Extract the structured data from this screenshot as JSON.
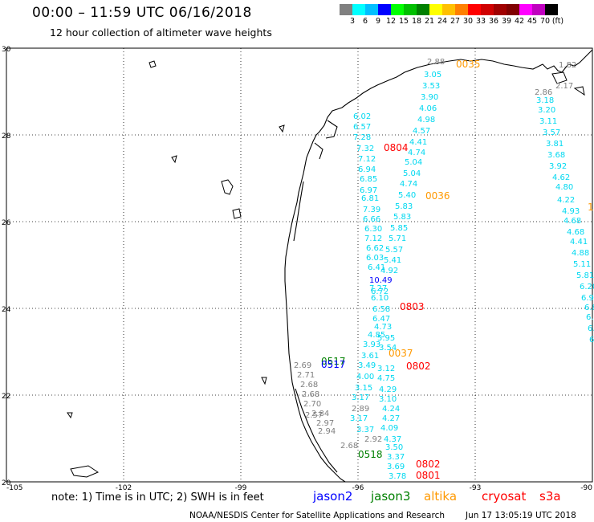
{
  "header": {
    "title": "00:00 – 11:59 UTC 06/16/2018",
    "subtitle": "12 hour collection of altimeter wave heights"
  },
  "colorbar": {
    "colors": [
      "#808080",
      "#00ffff",
      "#00bfff",
      "#0000ff",
      "#00ff00",
      "#00c000",
      "#008000",
      "#ffff00",
      "#ffc000",
      "#ff8000",
      "#ff0000",
      "#d00000",
      "#a00000",
      "#800000",
      "#ff00ff",
      "#c000c0",
      "#000000"
    ],
    "labels": [
      "3",
      "6",
      "9",
      "12",
      "15",
      "18",
      "21",
      "24",
      "27",
      "30",
      "33",
      "36",
      "39",
      "42",
      "45",
      "70",
      "(ft)"
    ]
  },
  "axes": {
    "lat_labels": [
      "30",
      "28",
      "26",
      "24",
      "22",
      "20"
    ],
    "lon_labels": [
      "-105",
      "-102",
      "-99",
      "-96",
      "-93",
      "-90"
    ]
  },
  "satellite_colors": {
    "jason2": "#0000ff",
    "jason3": "#008000",
    "altika": "#ff9900",
    "cryosat": "#ff0000",
    "s3a": "#808080",
    "generic": "#00d8f0",
    "darkred": "#d00000"
  },
  "wave_labels": [
    {
      "t": "2.88",
      "c": "s3a"
    },
    {
      "t": "3.05",
      "c": "generic"
    },
    {
      "t": "3.53",
      "c": "generic"
    },
    {
      "t": "3.90",
      "c": "generic"
    },
    {
      "t": "4.06",
      "c": "generic"
    },
    {
      "t": "4.98",
      "c": "generic"
    },
    {
      "t": "4.57",
      "c": "generic"
    },
    {
      "t": "4.41",
      "c": "generic"
    },
    {
      "t": "4.74",
      "c": "generic"
    },
    {
      "t": "5.04",
      "c": "generic"
    },
    {
      "t": "5.04",
      "c": "generic"
    },
    {
      "t": "4.74",
      "c": "generic"
    },
    {
      "t": "5.40",
      "c": "generic"
    },
    {
      "t": "5.83",
      "c": "generic"
    },
    {
      "t": "5.83",
      "c": "generic"
    },
    {
      "t": "5.85",
      "c": "generic"
    },
    {
      "t": "5.71",
      "c": "generic"
    },
    {
      "t": "5.57",
      "c": "generic"
    },
    {
      "t": "5.41",
      "c": "generic"
    },
    {
      "t": "4.92",
      "c": "generic"
    },
    {
      "t": "6.02",
      "c": "generic"
    },
    {
      "t": "6.57",
      "c": "generic"
    },
    {
      "t": "7.28",
      "c": "generic"
    },
    {
      "t": "7.32",
      "c": "generic"
    },
    {
      "t": "7.12",
      "c": "generic"
    },
    {
      "t": "6.94",
      "c": "generic"
    },
    {
      "t": "6.85",
      "c": "generic"
    },
    {
      "t": "6.97",
      "c": "generic"
    },
    {
      "t": "6.81",
      "c": "generic"
    },
    {
      "t": "7.39",
      "c": "generic"
    },
    {
      "t": "6.66",
      "c": "generic"
    },
    {
      "t": "6.30",
      "c": "generic"
    },
    {
      "t": "7.12",
      "c": "generic"
    },
    {
      "t": "6.62",
      "c": "generic"
    },
    {
      "t": "6.03",
      "c": "generic"
    },
    {
      "t": "6.41",
      "c": "generic"
    },
    {
      "t": "10.49",
      "c": "jason2"
    },
    {
      "t": "7.27",
      "c": "generic"
    },
    {
      "t": "6.72",
      "c": "generic"
    },
    {
      "t": "6.10",
      "c": "generic"
    },
    {
      "t": "6.58",
      "c": "generic"
    },
    {
      "t": "6.47",
      "c": "generic"
    },
    {
      "t": "4.73",
      "c": "generic"
    },
    {
      "t": "4.85",
      "c": "generic"
    },
    {
      "t": "5.95",
      "c": "generic"
    },
    {
      "t": "3.93",
      "c": "generic"
    },
    {
      "t": "3.54",
      "c": "generic"
    },
    {
      "t": "3.61",
      "c": "generic"
    },
    {
      "t": "3.49",
      "c": "generic"
    },
    {
      "t": "3.12",
      "c": "generic"
    },
    {
      "t": "4.00",
      "c": "generic"
    },
    {
      "t": "4.75",
      "c": "generic"
    },
    {
      "t": "3.15",
      "c": "generic"
    },
    {
      "t": "4.29",
      "c": "generic"
    },
    {
      "t": "3.17",
      "c": "generic"
    },
    {
      "t": "3.10",
      "c": "generic"
    },
    {
      "t": "2.89",
      "c": "s3a"
    },
    {
      "t": "4.24",
      "c": "generic"
    },
    {
      "t": "3.17",
      "c": "generic"
    },
    {
      "t": "4.27",
      "c": "generic"
    },
    {
      "t": "3.37",
      "c": "generic"
    },
    {
      "t": "4.09",
      "c": "generic"
    },
    {
      "t": "2.92",
      "c": "s3a"
    },
    {
      "t": "4.37",
      "c": "generic"
    },
    {
      "t": "3.50",
      "c": "generic"
    },
    {
      "t": "3.37",
      "c": "generic"
    },
    {
      "t": "3.69",
      "c": "generic"
    },
    {
      "t": "3.78",
      "c": "generic"
    },
    {
      "t": "2.69",
      "c": "s3a"
    },
    {
      "t": "2.71",
      "c": "s3a"
    },
    {
      "t": "2.68",
      "c": "s3a"
    },
    {
      "t": "2.68",
      "c": "s3a"
    },
    {
      "t": "2.70",
      "c": "s3a"
    },
    {
      "t": "2.57",
      "c": "s3a"
    },
    {
      "t": "2.84",
      "c": "s3a"
    },
    {
      "t": "2.97",
      "c": "s3a"
    },
    {
      "t": "2.94",
      "c": "s3a"
    },
    {
      "t": "2.68",
      "c": "s3a"
    },
    {
      "t": "1.82",
      "c": "s3a"
    },
    {
      "t": "2.17",
      "c": "s3a"
    },
    {
      "t": "2.86",
      "c": "s3a"
    },
    {
      "t": "3.18",
      "c": "generic"
    },
    {
      "t": "3.20",
      "c": "generic"
    },
    {
      "t": "3.11",
      "c": "generic"
    },
    {
      "t": "3.57",
      "c": "generic"
    },
    {
      "t": "3.81",
      "c": "generic"
    },
    {
      "t": "3.68",
      "c": "generic"
    },
    {
      "t": "3.92",
      "c": "generic"
    },
    {
      "t": "4.62",
      "c": "generic"
    },
    {
      "t": "4.80",
      "c": "generic"
    },
    {
      "t": "4.22",
      "c": "generic"
    },
    {
      "t": "4.93",
      "c": "generic"
    },
    {
      "t": "4.68",
      "c": "generic"
    },
    {
      "t": "4.68",
      "c": "generic"
    },
    {
      "t": "4.41",
      "c": "generic"
    },
    {
      "t": "4.88",
      "c": "generic"
    },
    {
      "t": "5.11",
      "c": "generic"
    },
    {
      "t": "5.81",
      "c": "generic"
    },
    {
      "t": "6.20",
      "c": "generic"
    },
    {
      "t": "6.9",
      "c": "generic"
    },
    {
      "t": "6.8",
      "c": "generic"
    },
    {
      "t": "6.",
      "c": "generic"
    },
    {
      "t": "6.",
      "c": "generic"
    },
    {
      "t": "6",
      "c": "generic"
    },
    {
      "t": "6",
      "c": "generic"
    }
  ],
  "time_labels": [
    {
      "t": "0035",
      "c": "altika"
    },
    {
      "t": "0804",
      "c": "cryosat"
    },
    {
      "t": "0036",
      "c": "altika"
    },
    {
      "t": "0803",
      "c": "cryosat"
    },
    {
      "t": "0037",
      "c": "altika"
    },
    {
      "t": "0802",
      "c": "cryosat"
    },
    {
      "t": "0517",
      "c": "jason3"
    },
    {
      "t": "0517",
      "c": "jason2"
    },
    {
      "t": "0518",
      "c": "jason3"
    },
    {
      "t": "0802",
      "c": "cryosat"
    },
    {
      "t": "0801",
      "c": "cryosat"
    },
    {
      "t": "1",
      "c": "altika"
    }
  ],
  "footer": {
    "note": "note:  1) Time is in UTC;  2) SWH is in feet",
    "legend": [
      "jason2",
      "jason3",
      "altika",
      "cryosat",
      "s3a"
    ],
    "credit": "NOAA/NESDIS Center for Satellite Applications and Research",
    "timestamp": "Jun 17 13:05:19 UTC 2018"
  }
}
